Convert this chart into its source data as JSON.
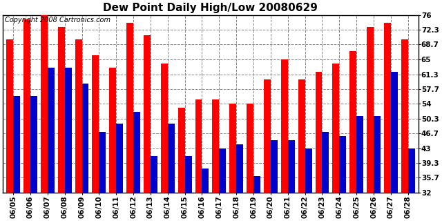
{
  "title": "Dew Point Daily High/Low 20080629",
  "copyright": "Copyright 2008 Cartronics.com",
  "dates": [
    "06/05",
    "06/06",
    "06/07",
    "06/08",
    "06/09",
    "06/10",
    "06/11",
    "06/12",
    "06/13",
    "06/14",
    "06/15",
    "06/16",
    "06/17",
    "06/18",
    "06/19",
    "06/20",
    "06/21",
    "06/22",
    "06/23",
    "06/24",
    "06/25",
    "06/26",
    "06/27",
    "06/28"
  ],
  "highs": [
    70,
    75,
    76,
    73,
    70,
    66,
    63,
    74,
    71,
    64,
    53,
    55,
    55,
    54,
    54,
    60,
    65,
    60,
    62,
    64,
    67,
    73,
    74,
    70
  ],
  "lows": [
    56,
    56,
    63,
    63,
    59,
    47,
    49,
    52,
    41,
    49,
    41,
    38,
    43,
    44,
    36,
    45,
    45,
    43,
    47,
    46,
    51,
    51,
    62,
    43
  ],
  "high_color": "#ff0000",
  "low_color": "#0000cc",
  "background_color": "#ffffff",
  "grid_color": "#888888",
  "ylim": [
    32.0,
    76.0
  ],
  "yticks": [
    32.0,
    35.7,
    39.3,
    43.0,
    46.7,
    50.3,
    54.0,
    57.7,
    61.3,
    65.0,
    68.7,
    72.3,
    76.0
  ],
  "title_fontsize": 11,
  "tick_fontsize": 7.5,
  "copyright_fontsize": 7,
  "bar_width": 0.4
}
